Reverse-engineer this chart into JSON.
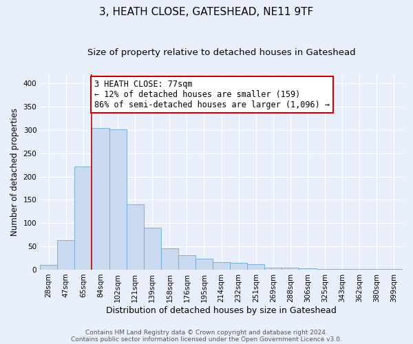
{
  "title": "3, HEATH CLOSE, GATESHEAD, NE11 9TF",
  "subtitle": "Size of property relative to detached houses in Gateshead",
  "xlabel": "Distribution of detached houses by size in Gateshead",
  "ylabel": "Number of detached properties",
  "bar_labels": [
    "28sqm",
    "47sqm",
    "65sqm",
    "84sqm",
    "102sqm",
    "121sqm",
    "139sqm",
    "158sqm",
    "176sqm",
    "195sqm",
    "214sqm",
    "232sqm",
    "251sqm",
    "269sqm",
    "288sqm",
    "306sqm",
    "325sqm",
    "343sqm",
    "362sqm",
    "380sqm",
    "399sqm"
  ],
  "bar_values": [
    10,
    63,
    221,
    305,
    302,
    140,
    90,
    46,
    31,
    23,
    16,
    14,
    12,
    4,
    4,
    3,
    2,
    2,
    2,
    2,
    2
  ],
  "bar_color": "#c9d9f0",
  "bar_edge_color": "#6fa8d4",
  "vline_color": "#cc0000",
  "vline_index": 3,
  "annotation_line1": "3 HEATH CLOSE: 77sqm",
  "annotation_line2": "← 12% of detached houses are smaller (159)",
  "annotation_line3": "86% of semi-detached houses are larger (1,096) →",
  "annotation_box_color": "#ffffff",
  "annotation_box_edge": "#cc0000",
  "ylim": [
    0,
    420
  ],
  "yticks": [
    0,
    50,
    100,
    150,
    200,
    250,
    300,
    350,
    400
  ],
  "background_color": "#eaf0fb",
  "grid_color": "#ffffff",
  "footer1": "Contains HM Land Registry data © Crown copyright and database right 2024.",
  "footer2": "Contains public sector information licensed under the Open Government Licence v3.0.",
  "title_fontsize": 11,
  "subtitle_fontsize": 9.5,
  "xlabel_fontsize": 9,
  "ylabel_fontsize": 8.5,
  "tick_fontsize": 7.5,
  "annotation_fontsize": 8.5,
  "footer_fontsize": 6.5
}
